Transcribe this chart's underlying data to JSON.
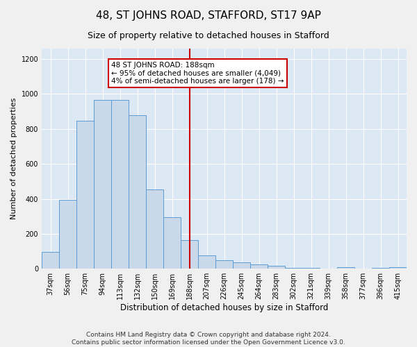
{
  "title": "48, ST JOHNS ROAD, STAFFORD, ST17 9AP",
  "subtitle": "Size of property relative to detached houses in Stafford",
  "xlabel": "Distribution of detached houses by size in Stafford",
  "ylabel": "Number of detached properties",
  "categories": [
    "37sqm",
    "56sqm",
    "75sqm",
    "94sqm",
    "113sqm",
    "132sqm",
    "150sqm",
    "169sqm",
    "188sqm",
    "207sqm",
    "226sqm",
    "245sqm",
    "264sqm",
    "283sqm",
    "302sqm",
    "321sqm",
    "339sqm",
    "358sqm",
    "377sqm",
    "396sqm",
    "415sqm"
  ],
  "values": [
    95,
    395,
    845,
    965,
    965,
    880,
    455,
    295,
    165,
    75,
    50,
    35,
    25,
    18,
    5,
    5,
    0,
    8,
    2,
    5,
    10
  ],
  "bar_color": "#c9d9ea",
  "bar_edge_color": "#5b9bd5",
  "vline_x": 8,
  "vline_color": "#cc0000",
  "annotation_text": "48 ST JOHNS ROAD: 188sqm\n← 95% of detached houses are smaller (4,049)\n4% of semi-detached houses are larger (178) →",
  "annotation_box_color": "#cc0000",
  "ylim": [
    0,
    1260
  ],
  "yticks": [
    0,
    200,
    400,
    600,
    800,
    1000,
    1200
  ],
  "background_color": "#dde8f5",
  "grid_color": "#ffffff",
  "footer": "Contains HM Land Registry data © Crown copyright and database right 2024.\nContains public sector information licensed under the Open Government Licence v3.0.",
  "title_fontsize": 11,
  "subtitle_fontsize": 9,
  "xlabel_fontsize": 8.5,
  "ylabel_fontsize": 8,
  "tick_fontsize": 7,
  "annotation_fontsize": 7.5,
  "footer_fontsize": 6.5
}
